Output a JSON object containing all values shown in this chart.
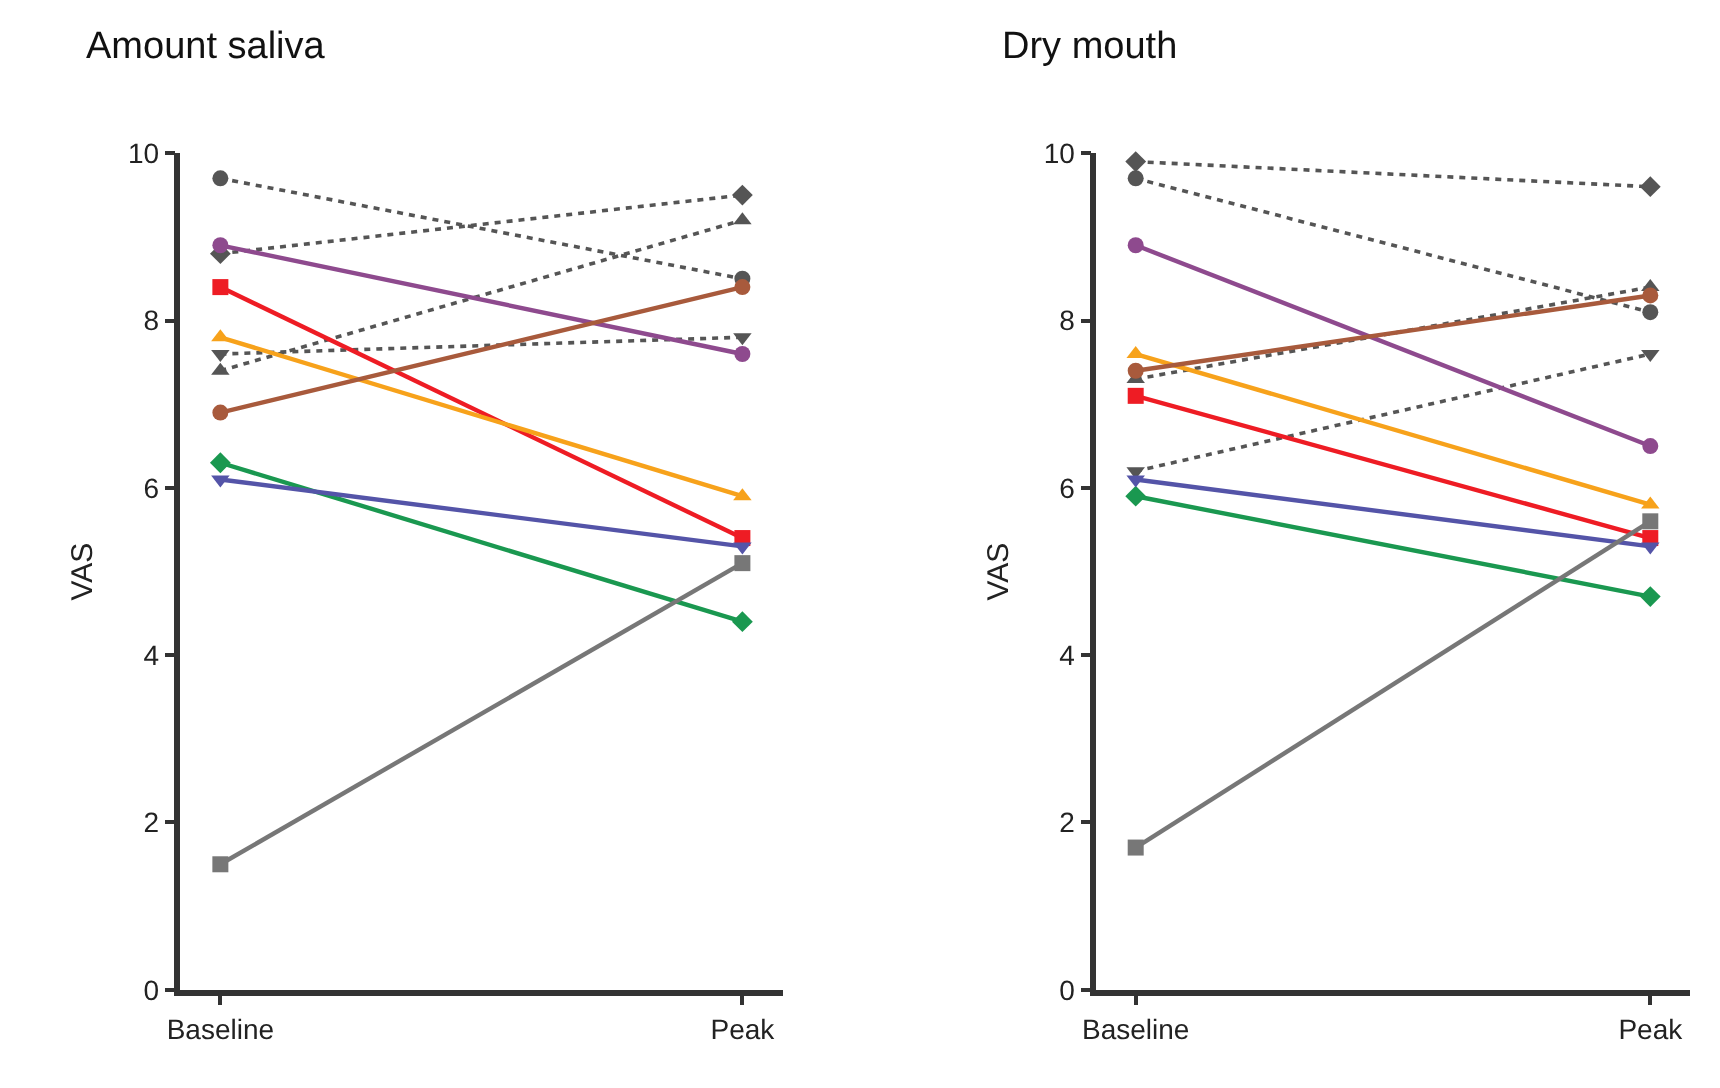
{
  "chart_data": [
    {
      "type": "line",
      "title": "Amount saliva",
      "ylabel": "VAS",
      "categories": [
        "Baseline",
        "Peak"
      ],
      "ylim": [
        0,
        10
      ],
      "yticks": [
        0,
        2,
        4,
        6,
        8,
        10
      ],
      "series": [
        {
          "color": "#555555",
          "values": [
            9.7,
            8.5
          ],
          "marker": "circle",
          "line_style": "dotted"
        },
        {
          "color": "#555555",
          "values": [
            8.8,
            9.5
          ],
          "marker": "diamond",
          "line_style": "dotted"
        },
        {
          "color": "#555555",
          "values": [
            7.4,
            9.2
          ],
          "marker": "triangle",
          "line_style": "dotted"
        },
        {
          "color": "#555555",
          "values": [
            7.6,
            7.8
          ],
          "marker": "triangle-down",
          "line_style": "dotted"
        },
        {
          "color": "#8e4a8e",
          "values": [
            8.9,
            7.6
          ],
          "marker": "circle",
          "line_style": "solid"
        },
        {
          "color": "#ee1c24",
          "values": [
            8.4,
            5.4
          ],
          "marker": "square",
          "line_style": "solid"
        },
        {
          "color": "#f7a21b",
          "values": [
            7.8,
            5.9
          ],
          "marker": "triangle",
          "line_style": "solid"
        },
        {
          "color": "#a85a3c",
          "values": [
            6.9,
            8.4
          ],
          "marker": "circle",
          "line_style": "solid"
        },
        {
          "color": "#1a9850",
          "values": [
            6.3,
            4.4
          ],
          "marker": "diamond",
          "line_style": "solid"
        },
        {
          "color": "#5454a8",
          "values": [
            6.1,
            5.3
          ],
          "marker": "triangle-down",
          "line_style": "solid"
        },
        {
          "color": "#777777",
          "values": [
            1.5,
            5.1
          ],
          "marker": "square",
          "line_style": "solid"
        }
      ]
    },
    {
      "type": "line",
      "title": "Dry mouth",
      "ylabel": "VAS",
      "categories": [
        "Baseline",
        "Peak"
      ],
      "ylim": [
        0,
        10
      ],
      "yticks": [
        0,
        2,
        4,
        6,
        8,
        10
      ],
      "series": [
        {
          "color": "#555555",
          "values": [
            9.9,
            9.6
          ],
          "marker": "diamond",
          "line_style": "dotted"
        },
        {
          "color": "#555555",
          "values": [
            9.7,
            8.1
          ],
          "marker": "circle",
          "line_style": "dotted"
        },
        {
          "color": "#555555",
          "values": [
            7.3,
            8.4
          ],
          "marker": "triangle",
          "line_style": "dotted"
        },
        {
          "color": "#555555",
          "values": [
            6.2,
            7.6
          ],
          "marker": "triangle-down",
          "line_style": "dotted"
        },
        {
          "color": "#8e4a8e",
          "values": [
            8.9,
            6.5
          ],
          "marker": "circle",
          "line_style": "solid"
        },
        {
          "color": "#ee1c24",
          "values": [
            7.1,
            5.4
          ],
          "marker": "square",
          "line_style": "solid"
        },
        {
          "color": "#f7a21b",
          "values": [
            7.6,
            5.8
          ],
          "marker": "triangle",
          "line_style": "solid"
        },
        {
          "color": "#a85a3c",
          "values": [
            7.4,
            8.3
          ],
          "marker": "circle",
          "line_style": "solid"
        },
        {
          "color": "#1a9850",
          "values": [
            5.9,
            4.7
          ],
          "marker": "diamond",
          "line_style": "solid"
        },
        {
          "color": "#5454a8",
          "values": [
            6.1,
            5.3
          ],
          "marker": "triangle-down",
          "line_style": "solid"
        },
        {
          "color": "#777777",
          "values": [
            1.7,
            5.6
          ],
          "marker": "square",
          "line_style": "solid"
        }
      ]
    }
  ]
}
